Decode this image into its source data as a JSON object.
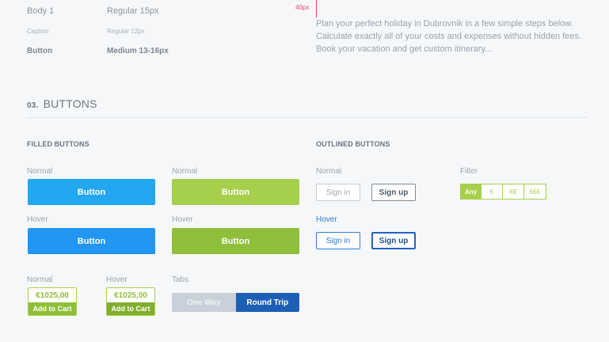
{
  "typography": {
    "rows": [
      {
        "name": "Body 1",
        "spec": "Regular 15px"
      },
      {
        "name": "Caption",
        "spec": "Regular 12px"
      },
      {
        "name": "Button",
        "spec": "Medium 13-16px"
      }
    ],
    "marker_label": "40px",
    "paragraph": [
      "Plan your perfect holiday in Dubrovnik in a few simple steps below.",
      "Calculate exactly all of your costs and expenses without hidden fees.",
      "Book your vacation and get custom itinerary..."
    ]
  },
  "section": {
    "number": "03.",
    "title": "BUTTONS"
  },
  "filled": {
    "title": "FILLED BUTTONS",
    "normal_label": "Normal",
    "hover_label": "Hover",
    "button_text": "Button"
  },
  "outlined": {
    "title": "OUTLINED BUTTONS",
    "normal_label": "Normal",
    "hover_label": "Hover",
    "signin": "Sign in",
    "signup": "Sign up"
  },
  "filter": {
    "label": "Filter",
    "options": [
      "Any",
      "€",
      "€€",
      "€€€"
    ],
    "active": "Any"
  },
  "cart": {
    "normal_label": "Normal",
    "hover_label": "Hover",
    "price": "€1025,00",
    "add_label": "Add to Cart"
  },
  "tabs": {
    "label": "Tabs",
    "items": [
      "One Way",
      "Round Trip"
    ],
    "active": "Round Trip"
  },
  "colors": {
    "blue_normal": "#22a7f0",
    "blue_hover": "#2196f3",
    "green_normal": "#a6cf4b",
    "green_hover": "#8fbf3a",
    "tab_active": "#1d5fb5",
    "marker": "#e8457a"
  }
}
